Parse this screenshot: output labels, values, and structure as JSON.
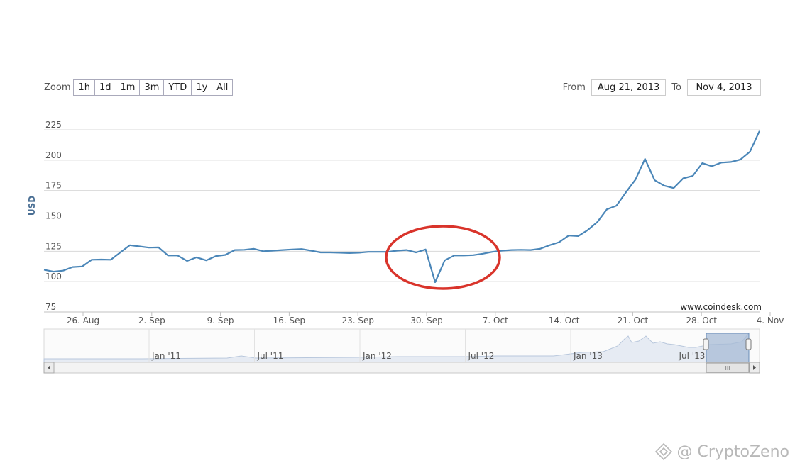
{
  "zoom": {
    "label": "Zoom",
    "buttons": [
      "1h",
      "1d",
      "1m",
      "3m",
      "YTD",
      "1y",
      "All"
    ]
  },
  "range": {
    "from_label": "From",
    "from_value": "Aug 21, 2013",
    "to_label": "To",
    "to_value": "Nov 4, 2013"
  },
  "credit": "www.coindesk.com",
  "watermark": "@ CryptoZeno",
  "navigator": {
    "labels": [
      "Jan '11",
      "Jul '11",
      "Jan '12",
      "Jul '12",
      "Jan '13",
      "Jul '13"
    ],
    "scroll_grip": "III"
  },
  "colors": {
    "line": "#4a86b8",
    "grid": "#d8d8d8",
    "highlight_circle": "#d9342b",
    "navigator_fill": "#e6ebf3",
    "navigator_selected": "#a7bbd6"
  },
  "chart_data": {
    "type": "line",
    "title": "",
    "xlabel": "",
    "ylabel": "USD",
    "ylim": [
      75,
      225
    ],
    "yticks": [
      75,
      100,
      125,
      150,
      175,
      200,
      225
    ],
    "x_tick_labels": [
      "26. Aug",
      "2. Sep",
      "9. Sep",
      "16. Sep",
      "23. Sep",
      "30. Sep",
      "7. Oct",
      "14. Oct",
      "21. Oct",
      "28. Oct",
      "4. Nov"
    ],
    "grid": true,
    "series": [
      {
        "values": [
          109.8,
          108.2,
          109.0,
          112.0,
          112.5,
          118.0,
          118.2,
          118.0,
          124.0,
          130.0,
          129.0,
          128.0,
          128.2,
          121.5,
          121.5,
          117.0,
          120.0,
          117.5,
          121.0,
          122.0,
          126.0,
          126.2,
          127.0,
          125.0,
          125.5,
          126.0,
          126.5,
          126.8,
          125.5,
          124.0,
          124.0,
          123.8,
          123.5,
          123.8,
          124.5,
          124.5,
          124.5,
          125.5,
          126.0,
          124.0,
          126.5,
          99.5,
          117.5,
          121.5,
          121.5,
          121.8,
          123.0,
          124.5,
          125.5,
          126.0,
          126.2,
          126.0,
          127.0,
          130.0,
          132.5,
          138.0,
          137.5,
          142.5,
          149.0,
          159.5,
          162.5,
          173.5,
          184.0,
          201.0,
          183.5,
          179.0,
          177.0,
          185.0,
          187.0,
          197.5,
          195.0,
          198.0,
          198.5,
          200.5,
          207.0,
          224.0
        ]
      }
    ]
  }
}
